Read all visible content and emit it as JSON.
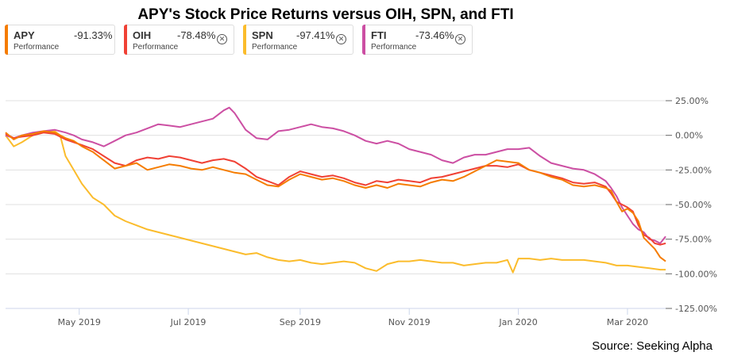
{
  "chart_data": {
    "type": "line",
    "title": "APY's Stock Price Returns versus OIH, SPN, and FTI",
    "xlabel": "",
    "ylabel": "",
    "ylim": [
      -125,
      25
    ],
    "y_ticks": [
      "25.00%",
      "0.00%",
      "-25.00%",
      "-50.00%",
      "-75.00%",
      "-100.00%",
      "-125.00%"
    ],
    "y_tick_values": [
      25,
      0,
      -25,
      -50,
      -75,
      -100,
      -125
    ],
    "x_ticks": [
      "May 2019",
      "Jul 2019",
      "Sep 2019",
      "Nov 2019",
      "Jan 2020",
      "Mar 2020"
    ],
    "x_tick_positions": [
      1.35,
      3.35,
      5.4,
      7.4,
      9.4,
      11.4
    ],
    "xlim": [
      0,
      12.1
    ],
    "grid": true,
    "legend": "top",
    "series": [
      {
        "name": "APY",
        "label": "Performance",
        "change": "-91.33%",
        "color": "#f57c00",
        "x": [
          0,
          0.15,
          0.3,
          0.5,
          0.7,
          0.9,
          1.1,
          1.25,
          1.4,
          1.6,
          1.8,
          2.0,
          2.2,
          2.4,
          2.6,
          2.8,
          3.0,
          3.2,
          3.4,
          3.6,
          3.8,
          4.0,
          4.2,
          4.4,
          4.6,
          4.8,
          5.0,
          5.2,
          5.4,
          5.6,
          5.8,
          6.0,
          6.2,
          6.4,
          6.6,
          6.8,
          7.0,
          7.2,
          7.4,
          7.6,
          7.8,
          8.0,
          8.2,
          8.4,
          8.6,
          8.8,
          9.0,
          9.2,
          9.4,
          9.6,
          9.8,
          10.0,
          10.2,
          10.4,
          10.6,
          10.8,
          11.0,
          11.1,
          11.2,
          11.3,
          11.4,
          11.5,
          11.6,
          11.7,
          11.8,
          11.9,
          12.0,
          12.1
        ],
        "y": [
          2,
          -3,
          0,
          1,
          3,
          2,
          -2,
          -4,
          -8,
          -12,
          -18,
          -24,
          -22,
          -20,
          -25,
          -23,
          -21,
          -22,
          -24,
          -25,
          -23,
          -25,
          -27,
          -28,
          -32,
          -36,
          -37,
          -32,
          -28,
          -30,
          -32,
          -31,
          -33,
          -36,
          -38,
          -36,
          -38,
          -35,
          -36,
          -37,
          -34,
          -32,
          -33,
          -30,
          -26,
          -22,
          -18,
          -19,
          -20,
          -25,
          -27,
          -30,
          -32,
          -36,
          -37,
          -36,
          -38,
          -40,
          -48,
          -55,
          -53,
          -56,
          -62,
          -74,
          -78,
          -82,
          -88,
          -91
        ]
      },
      {
        "name": "OIH",
        "label": "Performance",
        "change": "-78.48%",
        "color": "#f04135",
        "x": [
          0,
          0.15,
          0.3,
          0.5,
          0.7,
          0.9,
          1.1,
          1.25,
          1.4,
          1.6,
          1.8,
          2.0,
          2.2,
          2.4,
          2.6,
          2.8,
          3.0,
          3.2,
          3.4,
          3.6,
          3.8,
          4.0,
          4.2,
          4.4,
          4.6,
          4.8,
          5.0,
          5.2,
          5.4,
          5.6,
          5.8,
          6.0,
          6.2,
          6.4,
          6.6,
          6.8,
          7.0,
          7.2,
          7.4,
          7.6,
          7.8,
          8.0,
          8.2,
          8.4,
          8.6,
          8.8,
          9.0,
          9.2,
          9.4,
          9.6,
          9.8,
          10.0,
          10.2,
          10.4,
          10.6,
          10.8,
          11.0,
          11.1,
          11.2,
          11.3,
          11.4,
          11.5,
          11.6,
          11.7,
          11.8,
          11.9,
          12.0,
          12.1
        ],
        "y": [
          1,
          -2,
          -1,
          0,
          2,
          1,
          -3,
          -5,
          -7,
          -10,
          -15,
          -20,
          -22,
          -18,
          -16,
          -17,
          -15,
          -16,
          -18,
          -20,
          -18,
          -17,
          -19,
          -24,
          -30,
          -33,
          -36,
          -30,
          -26,
          -28,
          -30,
          -29,
          -31,
          -34,
          -36,
          -33,
          -34,
          -32,
          -33,
          -34,
          -31,
          -30,
          -28,
          -26,
          -24,
          -22,
          -22,
          -23,
          -21,
          -25,
          -27,
          -29,
          -31,
          -34,
          -35,
          -34,
          -37,
          -42,
          -48,
          -50,
          -52,
          -55,
          -65,
          -72,
          -74,
          -78,
          -79,
          -78
        ]
      },
      {
        "name": "SPN",
        "label": "Performance",
        "change": "-97.41%",
        "color": "#fbbc2c",
        "x": [
          0,
          0.15,
          0.3,
          0.5,
          0.7,
          0.9,
          1.0,
          1.1,
          1.25,
          1.4,
          1.6,
          1.8,
          2.0,
          2.2,
          2.4,
          2.6,
          2.8,
          3.0,
          3.2,
          3.4,
          3.6,
          3.8,
          4.0,
          4.2,
          4.4,
          4.6,
          4.8,
          5.0,
          5.2,
          5.4,
          5.6,
          5.8,
          6.0,
          6.2,
          6.4,
          6.6,
          6.8,
          7.0,
          7.2,
          7.4,
          7.6,
          7.8,
          8.0,
          8.2,
          8.4,
          8.6,
          8.8,
          9.0,
          9.2,
          9.3,
          9.4,
          9.6,
          9.8,
          10.0,
          10.2,
          10.4,
          10.6,
          10.8,
          11.0,
          11.2,
          11.4,
          11.6,
          11.8,
          12.0,
          12.1
        ],
        "y": [
          0,
          -8,
          -5,
          0,
          2,
          3,
          0,
          -15,
          -25,
          -35,
          -45,
          -50,
          -58,
          -62,
          -65,
          -68,
          -70,
          -72,
          -74,
          -76,
          -78,
          -80,
          -82,
          -84,
          -86,
          -85,
          -88,
          -90,
          -91,
          -90,
          -92,
          -93,
          -92,
          -91,
          -92,
          -96,
          -98,
          -93,
          -91,
          -91,
          -90,
          -91,
          -92,
          -92,
          -94,
          -93,
          -92,
          -92,
          -90,
          -99,
          -89,
          -89,
          -90,
          -89,
          -90,
          -90,
          -90,
          -91,
          -92,
          -94,
          -94,
          -95,
          -96,
          -97,
          -97
        ]
      },
      {
        "name": "FTI",
        "label": "Performance",
        "change": "-73.46%",
        "color": "#cc4fa3",
        "x": [
          0,
          0.15,
          0.3,
          0.5,
          0.7,
          0.9,
          1.1,
          1.25,
          1.4,
          1.6,
          1.8,
          2.0,
          2.2,
          2.4,
          2.6,
          2.8,
          3.0,
          3.2,
          3.4,
          3.6,
          3.8,
          4.0,
          4.1,
          4.2,
          4.4,
          4.6,
          4.8,
          5.0,
          5.2,
          5.4,
          5.6,
          5.8,
          6.0,
          6.2,
          6.4,
          6.6,
          6.8,
          7.0,
          7.2,
          7.4,
          7.6,
          7.8,
          8.0,
          8.2,
          8.4,
          8.6,
          8.8,
          9.0,
          9.2,
          9.4,
          9.6,
          9.8,
          10.0,
          10.2,
          10.4,
          10.6,
          10.8,
          11.0,
          11.1,
          11.2,
          11.3,
          11.4,
          11.5,
          11.6,
          11.7,
          11.8,
          11.9,
          12.0,
          12.1
        ],
        "y": [
          0,
          -2,
          0,
          2,
          3,
          4,
          2,
          0,
          -3,
          -5,
          -8,
          -4,
          0,
          2,
          5,
          8,
          7,
          6,
          8,
          10,
          12,
          18,
          20,
          16,
          4,
          -2,
          -3,
          3,
          4,
          6,
          8,
          6,
          5,
          3,
          0,
          -4,
          -6,
          -4,
          -6,
          -10,
          -12,
          -14,
          -18,
          -20,
          -16,
          -14,
          -14,
          -12,
          -10,
          -10,
          -9,
          -15,
          -20,
          -22,
          -24,
          -25,
          -28,
          -33,
          -38,
          -44,
          -52,
          -58,
          -64,
          -68,
          -70,
          -75,
          -76,
          -78,
          -73
        ]
      }
    ]
  },
  "source_text": "Source: Seeking Alpha",
  "close_icon_glyph": "✕"
}
